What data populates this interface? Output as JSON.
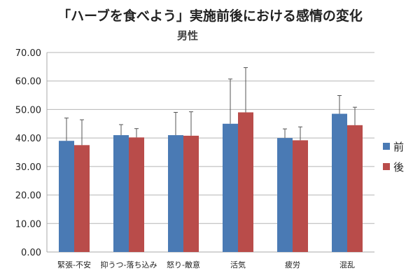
{
  "chart_data": {
    "type": "bar",
    "title": "「ハーブを食べよう」実施前後における感情の変化",
    "subtitle": "男性",
    "xlabel": "",
    "ylabel": "",
    "ylim": [
      0,
      70
    ],
    "yticks": [
      "0.00",
      "10.00",
      "20.00",
      "30.00",
      "40.00",
      "50.00",
      "60.00",
      "70.00"
    ],
    "grid": true,
    "legend": "right",
    "categories": [
      "緊張-不安",
      "抑うつ-落ち込み",
      "怒り-敵意",
      "活気",
      "疲労",
      "混乱"
    ],
    "series": [
      {
        "name": "前",
        "color": "#4a7ab4",
        "values": [
          39.0,
          41.0,
          41.0,
          45.0,
          40.0,
          48.5
        ],
        "error": [
          8.0,
          3.7,
          8.0,
          15.7,
          3.2,
          6.4
        ]
      },
      {
        "name": "後",
        "color": "#b94c4a",
        "values": [
          37.5,
          40.2,
          40.8,
          49.0,
          39.2,
          44.5
        ],
        "error": [
          8.9,
          3.1,
          8.4,
          15.7,
          4.7,
          6.3
        ]
      }
    ]
  }
}
